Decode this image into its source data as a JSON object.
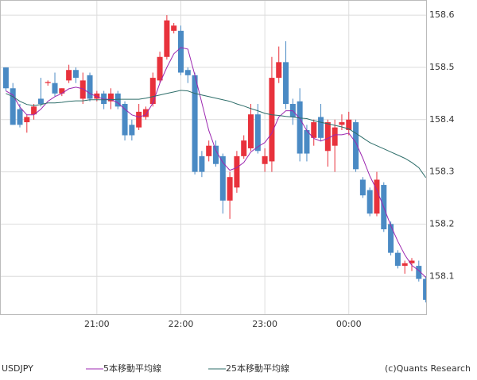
{
  "chart_data": {
    "type": "candlestick",
    "series_name": "USDJPY",
    "source": "(c)Quants Research",
    "up_color": "#e8323c",
    "down_color": "#4a8ac4",
    "categories": [
      null,
      null,
      null,
      null,
      null,
      null,
      null,
      null,
      null,
      null,
      null,
      null,
      null,
      "21:00",
      null,
      null,
      null,
      null,
      null,
      null,
      null,
      null,
      null,
      null,
      null,
      "22:00",
      null,
      null,
      null,
      null,
      null,
      null,
      null,
      null,
      null,
      null,
      null,
      "23:00",
      null,
      null,
      null,
      null,
      null,
      null,
      null,
      null,
      null,
      null,
      null,
      "00:00",
      null,
      null,
      null,
      null,
      null,
      null,
      null,
      null,
      null,
      null,
      null
    ],
    "open": [
      158.5,
      158.46,
      158.42,
      158.395,
      158.41,
      158.44,
      158.47,
      158.47,
      158.45,
      158.475,
      158.495,
      158.44,
      158.485,
      158.44,
      158.45,
      158.435,
      158.45,
      158.43,
      158.39,
      158.385,
      158.405,
      158.43,
      158.475,
      158.52,
      158.57,
      158.57,
      158.495,
      158.485,
      158.33,
      158.33,
      158.35,
      158.33,
      158.245,
      158.27,
      158.33,
      158.345,
      158.41,
      158.315,
      158.32,
      158.48,
      158.51,
      158.43,
      158.435,
      158.38,
      158.365,
      158.405,
      158.34,
      158.35,
      158.39,
      158.38,
      158.395,
      158.285,
      158.265,
      158.22,
      158.275,
      158.2,
      158.145,
      158.12,
      158.125,
      158.12,
      158.095
    ],
    "high": [
      158.5,
      158.47,
      158.43,
      158.41,
      158.43,
      158.48,
      158.475,
      158.49,
      158.46,
      158.505,
      158.5,
      158.49,
      158.49,
      158.455,
      158.455,
      158.46,
      158.455,
      158.435,
      158.4,
      158.43,
      158.425,
      158.49,
      158.53,
      158.6,
      158.585,
      158.58,
      158.5,
      158.49,
      158.34,
      158.36,
      158.36,
      158.335,
      158.3,
      158.34,
      158.37,
      158.43,
      158.43,
      158.345,
      158.52,
      158.54,
      158.55,
      158.44,
      158.46,
      158.39,
      158.4,
      158.43,
      158.4,
      158.4,
      158.41,
      158.415,
      158.4,
      158.29,
      158.27,
      158.3,
      158.28,
      158.205,
      158.15,
      158.13,
      158.135,
      158.13,
      158.1
    ],
    "low": [
      158.455,
      158.39,
      158.385,
      158.375,
      158.4,
      158.425,
      158.465,
      158.445,
      158.445,
      158.47,
      158.47,
      158.43,
      158.435,
      158.435,
      158.42,
      158.42,
      158.42,
      158.36,
      158.36,
      158.38,
      158.4,
      158.425,
      158.47,
      158.515,
      158.565,
      158.485,
      158.47,
      158.295,
      158.29,
      158.32,
      158.31,
      158.22,
      158.21,
      158.26,
      158.325,
      158.34,
      158.335,
      158.3,
      158.3,
      158.47,
      158.42,
      158.39,
      158.32,
      158.32,
      158.35,
      158.36,
      158.31,
      158.3,
      158.38,
      158.37,
      158.3,
      158.25,
      158.215,
      158.215,
      158.185,
      158.14,
      158.115,
      158.105,
      158.11,
      158.09,
      158.05
    ],
    "close": [
      158.46,
      158.39,
      158.39,
      158.405,
      158.425,
      158.43,
      158.472,
      158.45,
      158.46,
      158.495,
      158.48,
      158.475,
      158.44,
      158.45,
      158.43,
      158.45,
      158.425,
      158.37,
      158.37,
      158.415,
      158.42,
      158.48,
      158.52,
      158.59,
      158.58,
      158.49,
      158.485,
      158.3,
      158.3,
      158.35,
      158.315,
      158.245,
      158.29,
      158.33,
      158.36,
      158.41,
      158.34,
      158.33,
      158.48,
      158.51,
      158.43,
      158.405,
      158.335,
      158.335,
      158.395,
      158.365,
      158.395,
      158.385,
      158.395,
      158.4,
      158.305,
      158.255,
      158.22,
      158.285,
      158.19,
      158.145,
      158.12,
      158.125,
      158.13,
      158.095,
      158.055
    ],
    "lines": [
      {
        "name": "5本移動平均線",
        "color": "#9c27b0",
        "values": [
          158.455,
          158.447,
          158.424,
          158.409,
          158.409,
          158.42,
          158.435,
          158.444,
          158.45,
          158.459,
          158.462,
          158.459,
          158.45,
          158.444,
          158.439,
          158.439,
          158.432,
          158.42,
          158.409,
          158.405,
          158.409,
          158.432,
          158.47,
          158.5,
          158.526,
          158.538,
          158.535,
          158.485,
          158.432,
          158.379,
          158.341,
          158.318,
          158.303,
          158.308,
          158.318,
          158.338,
          158.348,
          158.356,
          158.374,
          158.405,
          158.417,
          158.417,
          158.402,
          158.379,
          158.364,
          158.359,
          158.364,
          158.371,
          158.371,
          158.374,
          158.356,
          158.326,
          158.292,
          158.265,
          158.232,
          158.197,
          158.167,
          158.141,
          158.121,
          158.111,
          158.098
        ]
      },
      {
        "name": "25本移動平均線",
        "color": "#2e6e6a",
        "values": [
          158.45,
          158.444,
          158.435,
          158.429,
          158.427,
          158.429,
          158.432,
          158.432,
          158.433,
          158.435,
          158.436,
          158.436,
          158.438,
          158.438,
          158.438,
          158.438,
          158.439,
          158.439,
          158.439,
          158.439,
          158.441,
          158.444,
          158.447,
          158.45,
          158.453,
          158.456,
          158.455,
          158.45,
          158.447,
          158.444,
          158.441,
          158.438,
          158.435,
          158.43,
          158.426,
          158.421,
          158.417,
          158.412,
          158.409,
          158.408,
          158.406,
          158.405,
          158.403,
          158.402,
          158.398,
          158.395,
          158.392,
          158.389,
          158.386,
          158.382,
          158.374,
          158.365,
          158.356,
          158.35,
          158.344,
          158.338,
          158.332,
          158.326,
          158.318,
          158.308,
          158.289
        ]
      }
    ],
    "ylim": [
      158.026,
      158.629
    ],
    "yticks": [
      158.1,
      158.2,
      158.3,
      158.4,
      158.5,
      158.6
    ],
    "grid": true
  }
}
